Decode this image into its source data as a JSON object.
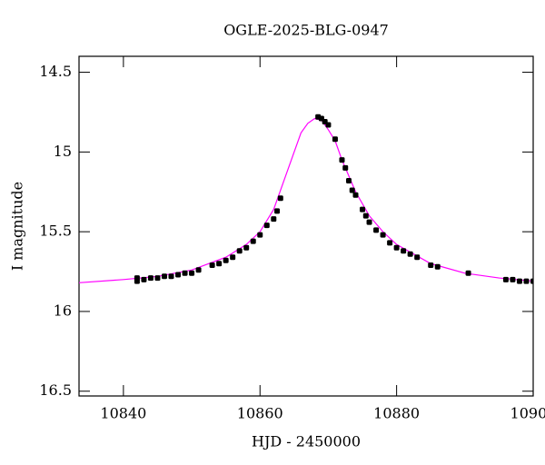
{
  "chart_data": {
    "type": "scatter",
    "title": "OGLE-2025-BLG-0947",
    "x_label": "HJD - 2450000",
    "y_label": "I magnitude",
    "xlim": [
      10833.5,
      10900
    ],
    "xticks": [
      10840,
      10860,
      10880,
      10900
    ],
    "ylim": [
      16.53,
      14.4
    ],
    "yticks": [
      14.5,
      15,
      15.5,
      16,
      16.5
    ],
    "series": [
      {
        "name": "data",
        "color": "#000000",
        "x": [
          10842,
          10842,
          10843,
          10844,
          10845,
          10846,
          10847,
          10848,
          10849,
          10850,
          10851,
          10853,
          10854,
          10855,
          10856,
          10857,
          10858,
          10859,
          10860,
          10861,
          10862,
          10862.5,
          10863,
          10868.5,
          10869,
          10869.5,
          10870,
          10871,
          10872,
          10872.5,
          10873,
          10873.5,
          10874,
          10875,
          10875.5,
          10876,
          10877,
          10878,
          10879,
          10880,
          10881,
          10882,
          10883,
          10885,
          10886,
          10890.5,
          10896,
          10897,
          10898,
          10899,
          10900
        ],
        "values": [
          15.79,
          15.81,
          15.8,
          15.79,
          15.79,
          15.78,
          15.78,
          15.77,
          15.76,
          15.76,
          15.74,
          15.71,
          15.7,
          15.68,
          15.66,
          15.62,
          15.6,
          15.56,
          15.52,
          15.46,
          15.42,
          15.37,
          15.29,
          14.78,
          14.79,
          14.81,
          14.83,
          14.92,
          15.05,
          15.1,
          15.18,
          15.24,
          15.27,
          15.36,
          15.4,
          15.44,
          15.49,
          15.52,
          15.57,
          15.6,
          15.62,
          15.64,
          15.66,
          15.71,
          15.72,
          15.76,
          15.8,
          15.8,
          15.81,
          15.81,
          15.81
        ]
      },
      {
        "name": "model",
        "type": "line",
        "color": "#ff00ff",
        "x": [
          10833.5,
          10840,
          10845,
          10850,
          10855,
          10858,
          10860,
          10862,
          10864,
          10866,
          10867,
          10868,
          10869,
          10870,
          10871,
          10872,
          10874,
          10876,
          10878,
          10880,
          10885,
          10890,
          10895,
          10900
        ],
        "values": [
          15.82,
          15.8,
          15.78,
          15.74,
          15.66,
          15.58,
          15.5,
          15.36,
          15.12,
          14.88,
          14.82,
          14.79,
          14.8,
          14.86,
          14.93,
          15.05,
          15.25,
          15.4,
          15.5,
          15.58,
          15.7,
          15.76,
          15.79,
          15.81
        ]
      }
    ]
  }
}
